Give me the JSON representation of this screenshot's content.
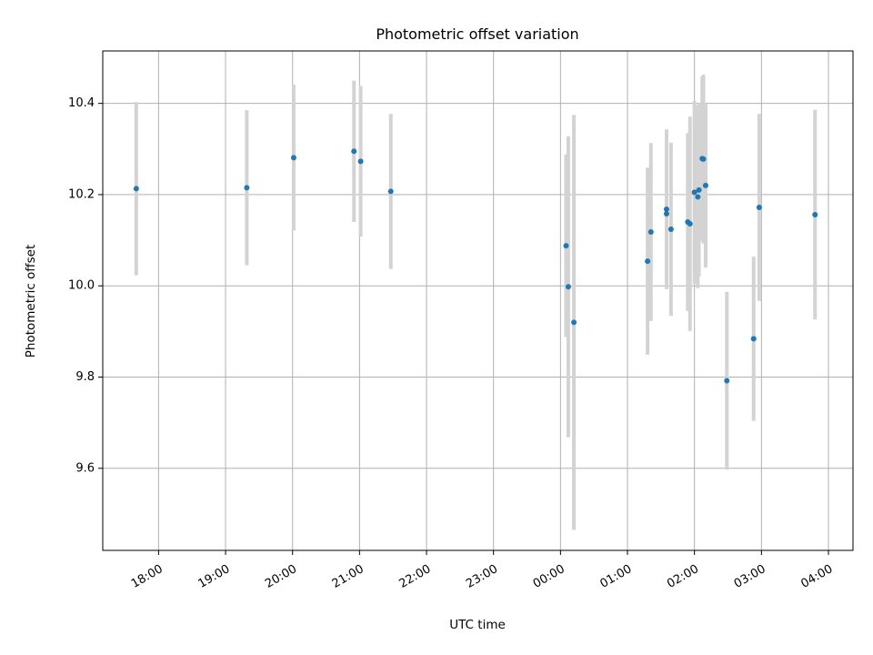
{
  "chart_data": {
    "type": "scatter",
    "title": "Photometric offset variation",
    "xlabel": "UTC time",
    "ylabel": "Photometric offset",
    "x_ticks": [
      "18:00",
      "19:00",
      "20:00",
      "21:00",
      "22:00",
      "23:00",
      "00:00",
      "01:00",
      "02:00",
      "03:00",
      "04:00"
    ],
    "y_ticks": [
      "9.6",
      "9.8",
      "10.0",
      "10.2",
      "10.4"
    ],
    "xlim": [
      "17:10",
      "04:22"
    ],
    "ylim": [
      9.42,
      10.515
    ],
    "grid": true,
    "error_bars": true,
    "points": [
      {
        "time": "17:40",
        "y": 10.213,
        "err": 0.19
      },
      {
        "time": "19:19",
        "y": 10.215,
        "err": 0.17
      },
      {
        "time": "20:01",
        "y": 10.281,
        "err": 0.16
      },
      {
        "time": "20:55",
        "y": 10.295,
        "err": 0.155
      },
      {
        "time": "21:01",
        "y": 10.273,
        "err": 0.165
      },
      {
        "time": "21:28",
        "y": 10.207,
        "err": 0.17
      },
      {
        "time": "00:05",
        "y": 10.088,
        "err": 0.2
      },
      {
        "time": "00:07",
        "y": 9.998,
        "err": 0.33
      },
      {
        "time": "00:12",
        "y": 9.92,
        "err": 0.455
      },
      {
        "time": "01:18",
        "y": 10.054,
        "err": 0.205
      },
      {
        "time": "01:21",
        "y": 10.118,
        "err": 0.195
      },
      {
        "time": "01:35",
        "y": 10.168,
        "err": 0.175
      },
      {
        "time": "01:35",
        "y": 10.158,
        "err": 0.16
      },
      {
        "time": "01:39",
        "y": 10.124,
        "err": 0.19
      },
      {
        "time": "01:54",
        "y": 10.14,
        "err": 0.195
      },
      {
        "time": "01:56",
        "y": 10.136,
        "err": 0.235
      },
      {
        "time": "02:00",
        "y": 10.205,
        "err": 0.2
      },
      {
        "time": "02:03",
        "y": 10.195,
        "err": 0.2
      },
      {
        "time": "02:04",
        "y": 10.21,
        "err": 0.19
      },
      {
        "time": "02:07",
        "y": 10.279,
        "err": 0.18
      },
      {
        "time": "02:08",
        "y": 10.278,
        "err": 0.185
      },
      {
        "time": "02:10",
        "y": 10.22,
        "err": 0.18
      },
      {
        "time": "02:29",
        "y": 9.792,
        "err": 0.195
      },
      {
        "time": "02:53",
        "y": 9.884,
        "err": 0.18
      },
      {
        "time": "02:58",
        "y": 10.172,
        "err": 0.205
      },
      {
        "time": "03:48",
        "y": 10.156,
        "err": 0.23
      }
    ],
    "colors": {
      "point": "#1f77b4",
      "errorbar": "#d3d3d3",
      "grid": "#b0b0b0"
    }
  }
}
